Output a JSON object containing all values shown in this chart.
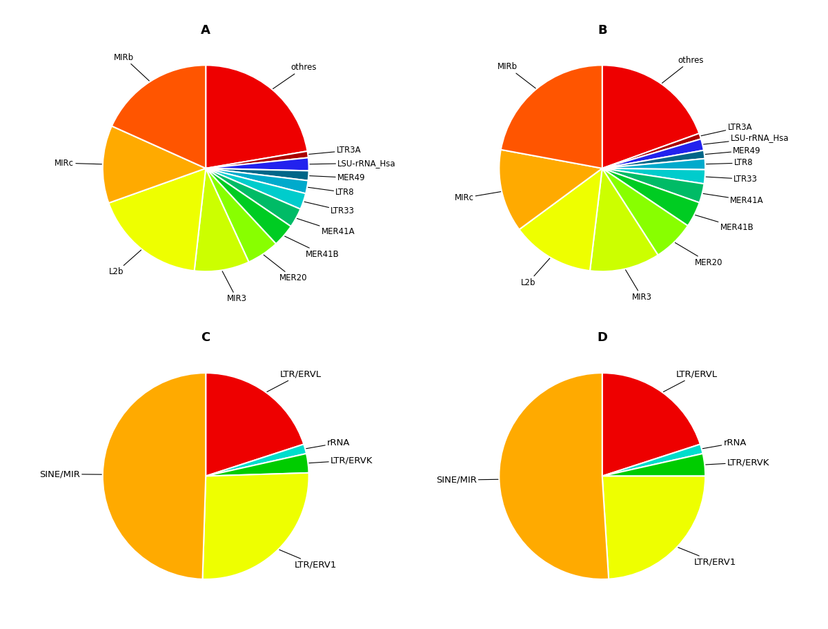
{
  "A": {
    "title": "A",
    "labels": [
      "othres",
      "LTR3A",
      "LSU-rRNA_Hsa",
      "MER49",
      "LTR8",
      "LTR33",
      "MER41A",
      "MER41B",
      "MER20",
      "MIR3",
      "L2b",
      "MIRc",
      "MIRb"
    ],
    "values": [
      22.0,
      1.0,
      2.0,
      1.5,
      2.0,
      2.5,
      3.0,
      3.5,
      5.0,
      8.5,
      17.5,
      12.0,
      18.0
    ],
    "colors": [
      "#EE0000",
      "#AA0000",
      "#2222EE",
      "#006688",
      "#00AACC",
      "#00CCCC",
      "#00BB66",
      "#00CC22",
      "#88FF00",
      "#CCFF00",
      "#EEFF00",
      "#FFAA00",
      "#FF5500"
    ]
  },
  "B": {
    "title": "B",
    "labels": [
      "othres",
      "LTR3A",
      "LSU-rRNA_Hsa",
      "MER49",
      "LTR8",
      "LTR33",
      "MER41A",
      "MER41B",
      "MER20",
      "MIR3",
      "L2b",
      "MIRc",
      "MIRb"
    ],
    "values": [
      19.5,
      0.9,
      1.8,
      1.3,
      1.7,
      2.2,
      3.0,
      4.0,
      6.5,
      11.0,
      13.0,
      13.0,
      22.1
    ],
    "colors": [
      "#EE0000",
      "#AA0000",
      "#2222EE",
      "#006688",
      "#00AACC",
      "#00CCCC",
      "#00BB66",
      "#00CC22",
      "#88FF00",
      "#CCFF00",
      "#EEFF00",
      "#FFAA00",
      "#FF5500"
    ]
  },
  "C": {
    "title": "C",
    "labels": [
      "LTR/ERVL",
      "rRNA",
      "LTR/ERVK",
      "LTR/ERV1",
      "SINE/MIR"
    ],
    "values": [
      20.0,
      1.5,
      3.0,
      26.0,
      49.5
    ],
    "colors": [
      "#EE0000",
      "#00DDCC",
      "#00CC00",
      "#EEFF00",
      "#FFAA00"
    ]
  },
  "D": {
    "title": "D",
    "labels": [
      "LTR/ERVL",
      "rRNA",
      "LTR/ERVK",
      "LTR/ERV1",
      "SINE/MIR"
    ],
    "values": [
      20.0,
      1.5,
      3.5,
      24.0,
      51.0
    ],
    "colors": [
      "#EE0000",
      "#00DDCC",
      "#00CC00",
      "#EEFF00",
      "#FFAA00"
    ]
  },
  "bg_color": "#FFFFFF",
  "label_fontsize_AB": 8.5,
  "label_fontsize_CD": 9.5,
  "title_fontsize": 13,
  "wedge_edge_color": "#FFFFFF",
  "wedge_linewidth": 1.5
}
